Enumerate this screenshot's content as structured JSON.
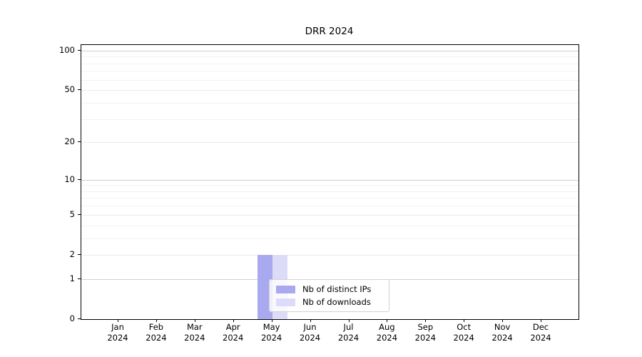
{
  "chart_data": {
    "type": "bar",
    "title": "DRR 2024",
    "xlabel": "",
    "ylabel": "",
    "yscale": "log1p",
    "ylim": [
      0,
      110
    ],
    "yticks": [
      0,
      1,
      2,
      5,
      10,
      20,
      50,
      100
    ],
    "yticks_minor": [
      3,
      4,
      6,
      7,
      8,
      9,
      30,
      40,
      60,
      70,
      80,
      90
    ],
    "yticks_decade_emphasis": [
      1,
      10,
      100
    ],
    "grid": true,
    "legend_position": "lower center",
    "categories": [
      {
        "month": "Jan",
        "year": "2024"
      },
      {
        "month": "Feb",
        "year": "2024"
      },
      {
        "month": "Mar",
        "year": "2024"
      },
      {
        "month": "Apr",
        "year": "2024"
      },
      {
        "month": "May",
        "year": "2024"
      },
      {
        "month": "Jun",
        "year": "2024"
      },
      {
        "month": "Jul",
        "year": "2024"
      },
      {
        "month": "Aug",
        "year": "2024"
      },
      {
        "month": "Sep",
        "year": "2024"
      },
      {
        "month": "Oct",
        "year": "2024"
      },
      {
        "month": "Nov",
        "year": "2024"
      },
      {
        "month": "Dec",
        "year": "2024"
      }
    ],
    "series": [
      {
        "name": "Nb of distinct IPs",
        "color": "#a9a9f0",
        "values": [
          0,
          0,
          0,
          0,
          2,
          0,
          0,
          0,
          0,
          0,
          0,
          0
        ]
      },
      {
        "name": "Nb of downloads",
        "color": "#dcdcf8",
        "values": [
          0,
          0,
          0,
          0,
          2,
          0,
          0,
          0,
          0,
          0,
          0,
          0
        ]
      }
    ],
    "colors": {
      "axis": "#000000",
      "grid_minor": "#f2f2f2",
      "grid_major": "#ececec",
      "grid_decade": "#cfcfcf",
      "legend_border": "#d2d2d2"
    }
  }
}
